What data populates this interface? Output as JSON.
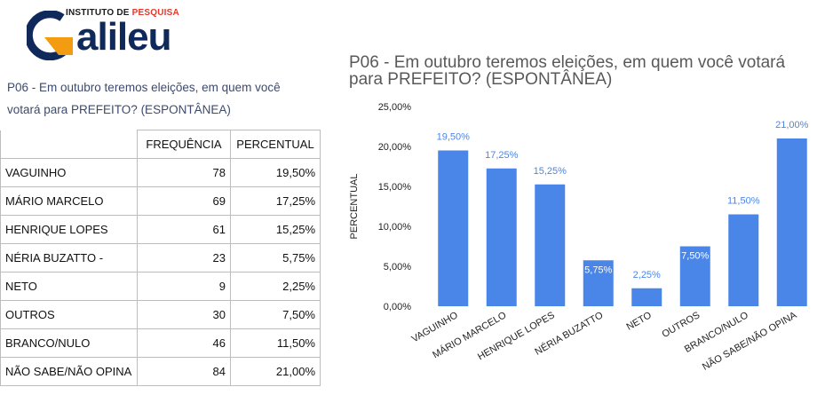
{
  "logo": {
    "subtitle_prefix": "INSTITUTO DE ",
    "subtitle_highlight": "PESQUISA",
    "wordmark": "alileu"
  },
  "question_text": "P06 - Em outubro teremos eleições, em quem você votará para PREFEITO? (ESPONTÂNEA)",
  "table": {
    "headers": [
      "",
      "FREQUÊNCIA",
      "PERCENTUAL"
    ],
    "rows": [
      {
        "name": "VAGUINHO",
        "freq": "78",
        "pct": "19,50%"
      },
      {
        "name": "MÁRIO MARCELO",
        "freq": "69",
        "pct": "17,25%"
      },
      {
        "name": "HENRIQUE LOPES",
        "freq": "61",
        "pct": "15,25%"
      },
      {
        "name": "NÉRIA BUZATTO -",
        "freq": "23",
        "pct": "5,75%"
      },
      {
        "name": "NETO",
        "freq": "9",
        "pct": "2,25%"
      },
      {
        "name": "OUTROS",
        "freq": "30",
        "pct": "7,50%"
      },
      {
        "name": "BRANCO/NULO",
        "freq": "46",
        "pct": "11,50%"
      },
      {
        "name": "NÃO SABE/NÃO OPINA",
        "freq": "84",
        "pct": "21,00%"
      }
    ]
  },
  "colors": {
    "bar": "#4a86e8",
    "label_outside": "#4a86e8",
    "label_inside": "#ffffff",
    "title": "#595959"
  },
  "chart_data": {
    "type": "bar",
    "title": "P06 - Em outubro teremos eleições, em quem você votará para PREFEITO? (ESPONTÂNEA)",
    "xlabel": "",
    "ylabel": "PERCENTUAL",
    "categories": [
      "VAGUINHO",
      "MÁRIO MARCELO",
      "HENRIQUE LOPES",
      "NÉRIA BUZATTO",
      "NETO",
      "OUTROS",
      "BRANCO/NULO",
      "NÃO SABE/NÃO OPINA"
    ],
    "values": [
      19.5,
      17.25,
      15.25,
      5.75,
      2.25,
      7.5,
      11.5,
      21.0
    ],
    "data_labels": [
      "19,50%",
      "17,25%",
      "15,25%",
      "5,75%",
      "2,25%",
      "7,50%",
      "11,50%",
      "21,00%"
    ],
    "ylim": [
      0,
      25
    ],
    "yticks": [
      0,
      5,
      10,
      15,
      20,
      25
    ],
    "ytick_labels": [
      "0,00%",
      "5,00%",
      "10,00%",
      "15,00%",
      "20,00%",
      "25,00%"
    ],
    "grid": false,
    "legend": "none"
  }
}
